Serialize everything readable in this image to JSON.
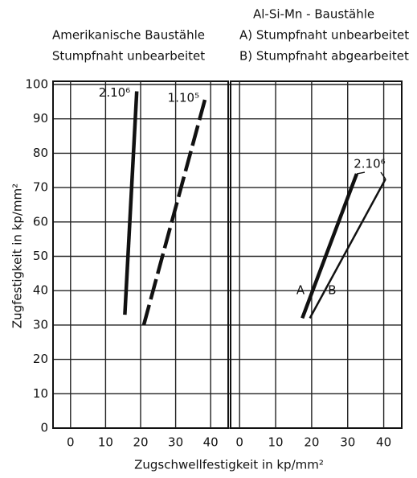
{
  "chart_data": [
    {
      "type": "line",
      "title_lines": [
        "Amerikanische Baustähle",
        "Stumpfnaht unbearbeitet"
      ],
      "ylabel": "Zugfestigkeit in kp/mm²",
      "xlabel": "Zugschwellfestigkeit in kp/mm²",
      "xlim": [
        -5,
        45
      ],
      "xticks": [
        0,
        10,
        20,
        30,
        40
      ],
      "ylim": [
        0,
        100
      ],
      "yticks": [
        0,
        10,
        20,
        30,
        40,
        50,
        60,
        70,
        80,
        90,
        100
      ],
      "grid": true,
      "series": [
        {
          "name": "2.10⁶",
          "color": "#111111",
          "style": "solid",
          "x": [
            15.5,
            18.9
          ],
          "values": [
            33,
            98
          ]
        },
        {
          "name": "1.10⁵",
          "color": "#111111",
          "style": "dashed",
          "x": [
            20.9,
            38.6
          ],
          "values": [
            30,
            96.5
          ]
        }
      ]
    },
    {
      "type": "line",
      "title_lines": [
        "Al-Si-Mn - Baustähle",
        "A) Stumpfnaht unbearbeitet",
        "B) Stumpfnaht abgearbeitet"
      ],
      "annotation": "2.10⁶",
      "xlim": [
        -2.5,
        45
      ],
      "xticks": [
        0,
        10,
        20,
        30,
        40
      ],
      "ylim": [
        0,
        100
      ],
      "grid": true,
      "series": [
        {
          "name": "A",
          "color": "#111111",
          "style": "solid",
          "x": [
            17.4,
            32.5
          ],
          "values": [
            32,
            74
          ]
        },
        {
          "name": "B",
          "color": "#111111",
          "style": "thin",
          "x": [
            19.5,
            40.5
          ],
          "values": [
            32,
            72.5
          ]
        }
      ]
    }
  ]
}
